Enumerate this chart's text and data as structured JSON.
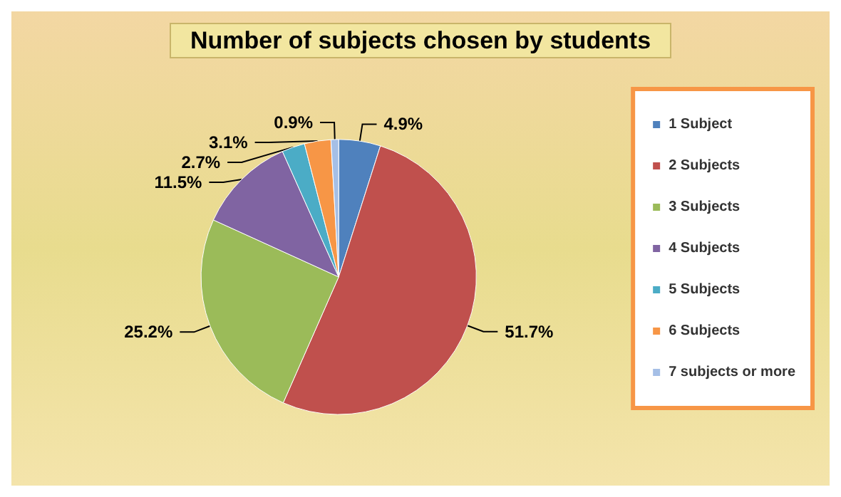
{
  "chart_data": {
    "type": "pie",
    "title": "Number of subjects chosen by students",
    "categories": [
      "1 Subject",
      "2 Subjects",
      "3 Subjects",
      "4 Subjects",
      "5 Subjects",
      "6 Subjects",
      "7 subjects or more"
    ],
    "values": [
      4.9,
      51.7,
      25.2,
      11.5,
      2.7,
      3.1,
      0.9
    ],
    "value_labels": [
      "4.9%",
      "51.7%",
      "25.2%",
      "11.5%",
      "2.7%",
      "3.1%",
      "0.9%"
    ],
    "colors": [
      "#4f81bd",
      "#c0504d",
      "#9bbb59",
      "#8064a2",
      "#4bacc6",
      "#f79646",
      "#a5bfe6"
    ],
    "legend": "right"
  }
}
